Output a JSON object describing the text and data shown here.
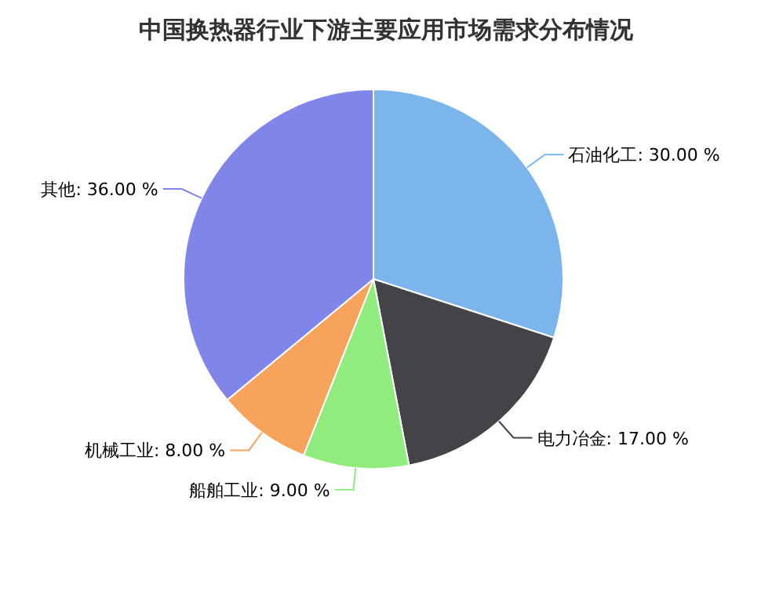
{
  "chart_data": {
    "type": "pie",
    "title": "中国换热器行业下游主要应用市场需求分布情况",
    "categories": [
      "石油化工",
      "电力冶金",
      "船舶工业",
      "机械工业",
      "其他"
    ],
    "values": [
      30,
      17,
      9,
      8,
      36
    ],
    "value_labels": [
      "30.00 %",
      "17.00 %",
      "9.00 %",
      "8.00 %",
      "36.00 %"
    ],
    "colors": [
      "#7cb5ec",
      "#434348",
      "#90ed7d",
      "#f7a35c",
      "#8085e9"
    ]
  }
}
